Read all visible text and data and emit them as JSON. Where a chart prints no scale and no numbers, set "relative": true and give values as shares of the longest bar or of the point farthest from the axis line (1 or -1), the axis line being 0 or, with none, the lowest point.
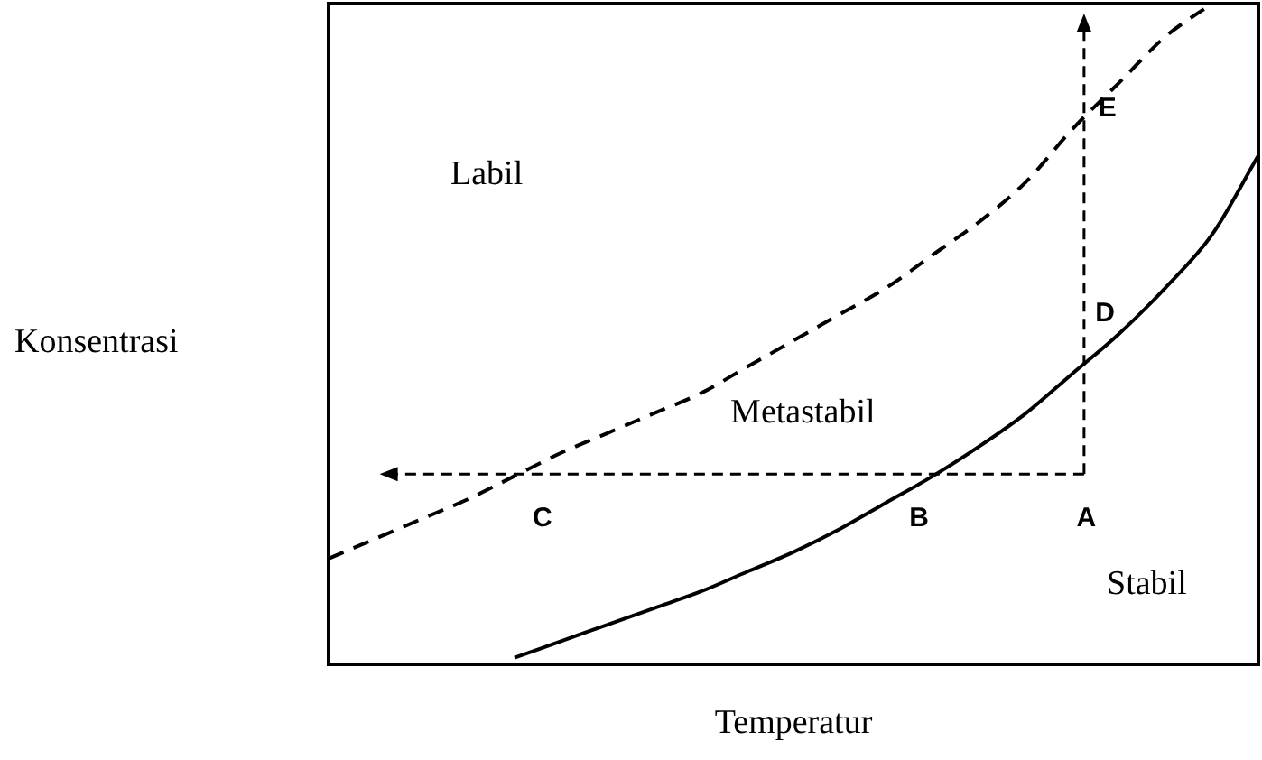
{
  "chart_data": {
    "type": "line",
    "relative": true,
    "xlabel": "Temperatur",
    "ylabel": "Konsentrasi",
    "categories": [
      null,
      null,
      null,
      null,
      null,
      null,
      null,
      null,
      null,
      null,
      null,
      null,
      null,
      null,
      null,
      null,
      null,
      null,
      null,
      null,
      null
    ],
    "series": [
      {
        "color": "#000000",
        "line_style": "solid",
        "values": [
          null,
          null,
          null,
          null,
          0.01,
          0.035,
          0.06,
          0.085,
          0.11,
          0.14,
          0.17,
          0.205,
          0.245,
          0.285,
          0.33,
          0.38,
          0.44,
          0.5,
          0.57,
          0.65,
          0.77
        ]
      },
      {
        "color": "#000000",
        "line_style": "dashed",
        "values": [
          0.16,
          0.19,
          0.22,
          0.25,
          0.285,
          0.32,
          0.35,
          0.38,
          0.41,
          0.45,
          0.49,
          0.53,
          0.57,
          0.62,
          0.67,
          0.73,
          0.81,
          0.88,
          0.95,
          1.0,
          null
        ]
      }
    ],
    "annotations": [
      "Labil",
      "Metastabil",
      "Stabil",
      "A",
      "B",
      "C",
      "D",
      "E"
    ],
    "legend": false,
    "tick_labels": false,
    "marker": "none"
  }
}
